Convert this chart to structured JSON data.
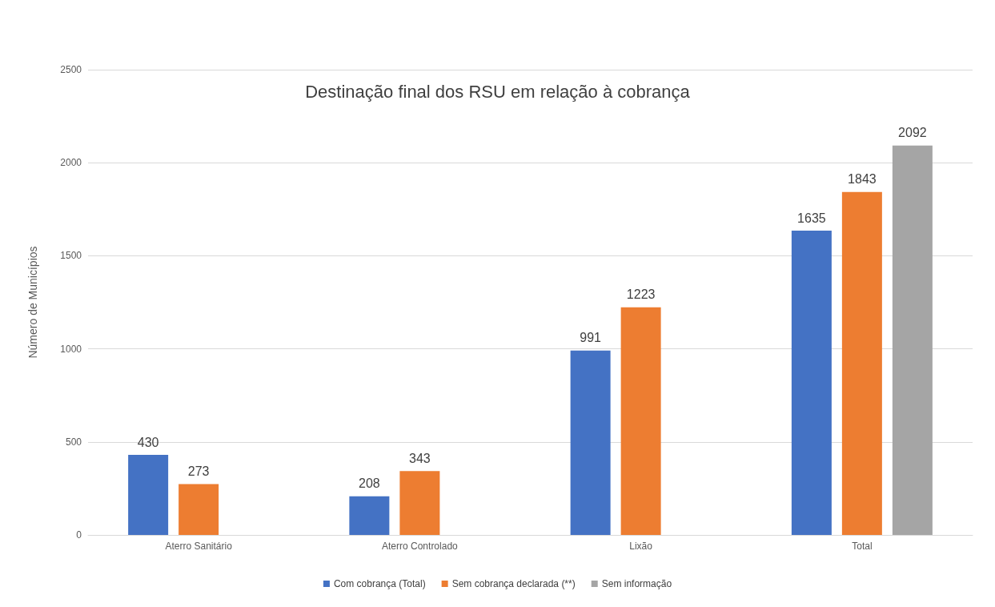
{
  "chart_data": {
    "type": "bar",
    "title": "Destinação final dos RSU em relação à cobrança",
    "ylabel": "Número de Municípios",
    "categories": [
      "Aterro Sanitário",
      "Aterro Controlado",
      "Lixão",
      "Total"
    ],
    "series": [
      {
        "name": "Com cobrança (Total)",
        "color": "#4472c4",
        "values": [
          430,
          208,
          991,
          1635
        ]
      },
      {
        "name": "Sem cobrança declarada (**)",
        "color": "#ed7d31",
        "values": [
          273,
          343,
          1223,
          1843
        ]
      },
      {
        "name": "Sem informação",
        "color": "#a5a5a5",
        "values": [
          null,
          null,
          null,
          2092
        ]
      }
    ],
    "ylim": [
      0,
      2500
    ],
    "yticks": [
      0,
      500,
      1000,
      1500,
      2000,
      2500
    ],
    "grid": "y",
    "legend": "bottom",
    "data_labels": true
  }
}
